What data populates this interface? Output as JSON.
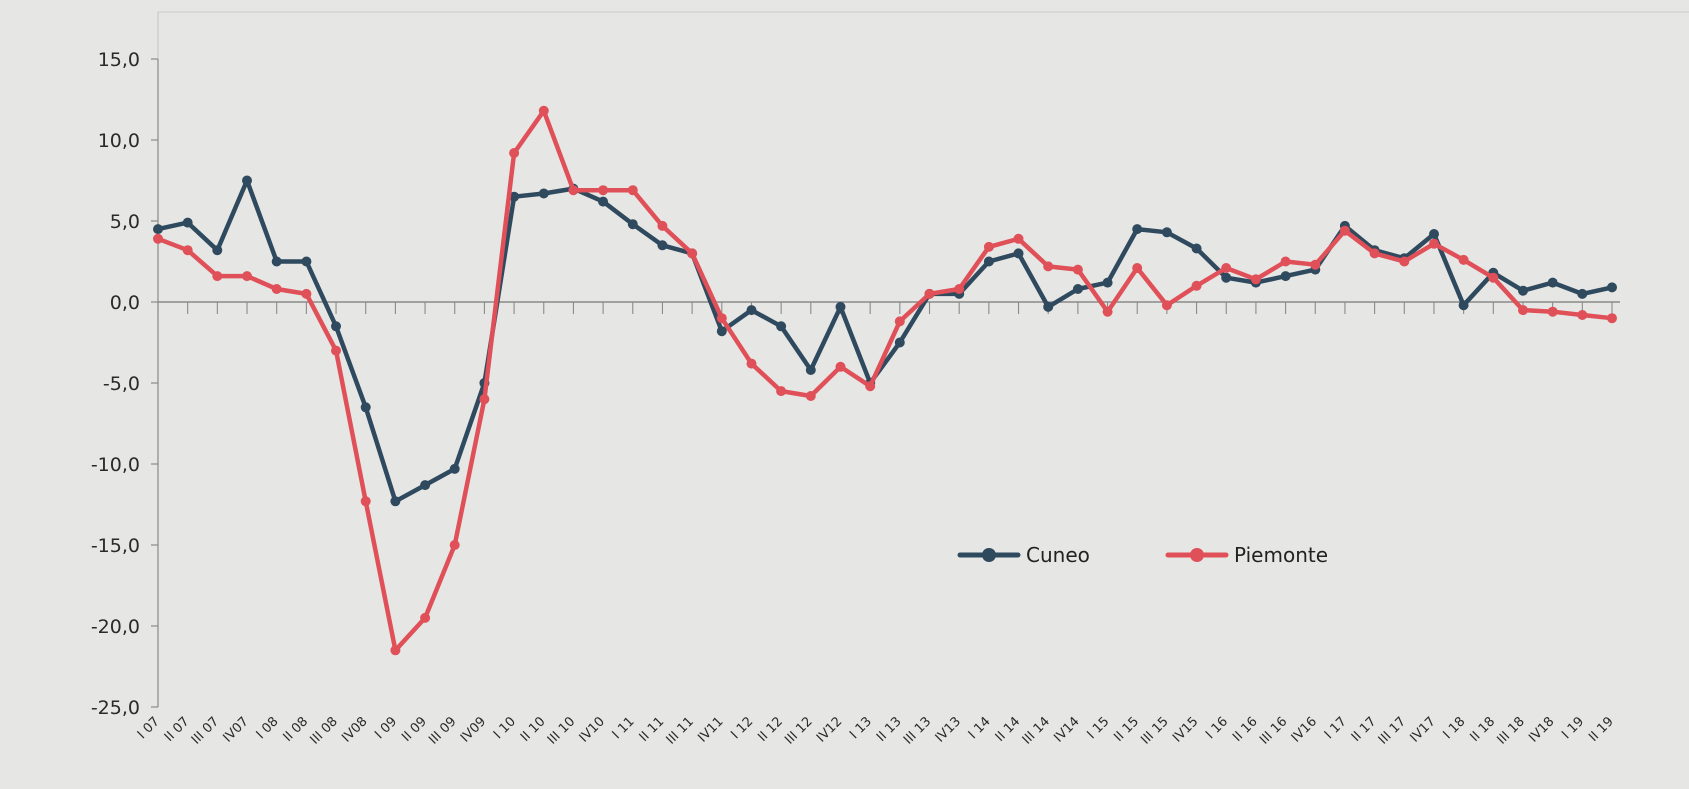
{
  "chart_data": {
    "type": "line",
    "title": "",
    "xlabel": "",
    "ylabel": "",
    "ylim": [
      -25,
      15
    ],
    "yticks": [
      15,
      10,
      5,
      0,
      -5,
      -10,
      -15,
      -20,
      -25
    ],
    "ytick_labels": [
      "15,0",
      "10,0",
      "5,0",
      "0,0",
      "-5,0",
      "-10,0",
      "-15,0",
      "-20,0",
      "-25,0"
    ],
    "grid": false,
    "legend_position": "lower-right",
    "categories": [
      "I 07",
      "II 07",
      "III 07",
      "IV07",
      "I 08",
      "II 08",
      "III 08",
      "IV08",
      "I 09",
      "II 09",
      "III 09",
      "IV09",
      "I 10",
      "II 10",
      "III 10",
      "IV10",
      "I 11",
      "II 11",
      "III 11",
      "IV11",
      "I 12",
      "II 12",
      "III 12",
      "IV12",
      "I 13",
      "II 13",
      "III 13",
      "IV13",
      "I 14",
      "II 14",
      "III 14",
      "IV14",
      "I 15",
      "II 15",
      "III 15",
      "IV15",
      "I 16",
      "II 16",
      "III 16",
      "IV16",
      "I 17",
      "II 17",
      "III 17",
      "IV17",
      "I 18",
      "II 18",
      "III 18",
      "IV18",
      "I 19",
      "II 19"
    ],
    "series": [
      {
        "name": "Cuneo",
        "color": "#2f4a5e",
        "values": [
          4.5,
          4.9,
          3.2,
          7.5,
          2.5,
          2.5,
          -1.5,
          -6.5,
          -12.3,
          -11.3,
          -10.3,
          -5.0,
          6.5,
          6.7,
          7.0,
          6.2,
          4.8,
          3.5,
          3.0,
          -1.8,
          -0.5,
          -1.5,
          -4.2,
          -0.3,
          -5.0,
          -2.5,
          0.5,
          0.5,
          2.5,
          3.0,
          -0.3,
          0.8,
          1.2,
          4.5,
          4.3,
          3.3,
          1.5,
          1.2,
          1.6,
          2.0,
          4.7,
          3.2,
          2.7,
          4.2,
          -0.2,
          1.8,
          0.7,
          1.2,
          0.5,
          0.9
        ]
      },
      {
        "name": "Piemonte",
        "color": "#e05058",
        "values": [
          3.9,
          3.2,
          1.6,
          1.6,
          0.8,
          0.5,
          -3.0,
          -12.3,
          -21.5,
          -19.5,
          -15.0,
          -6.0,
          9.2,
          11.8,
          6.9,
          6.9,
          6.9,
          4.7,
          3.0,
          -1.0,
          -3.8,
          -5.5,
          -5.8,
          -4.0,
          -5.2,
          -1.2,
          0.5,
          0.8,
          3.4,
          3.9,
          2.2,
          2.0,
          -0.6,
          2.1,
          -0.2,
          1.0,
          2.1,
          1.4,
          2.5,
          2.3,
          4.4,
          3.0,
          2.5,
          3.6,
          2.6,
          1.5,
          -0.5,
          -0.6,
          -0.8,
          -1.0
        ]
      }
    ]
  }
}
